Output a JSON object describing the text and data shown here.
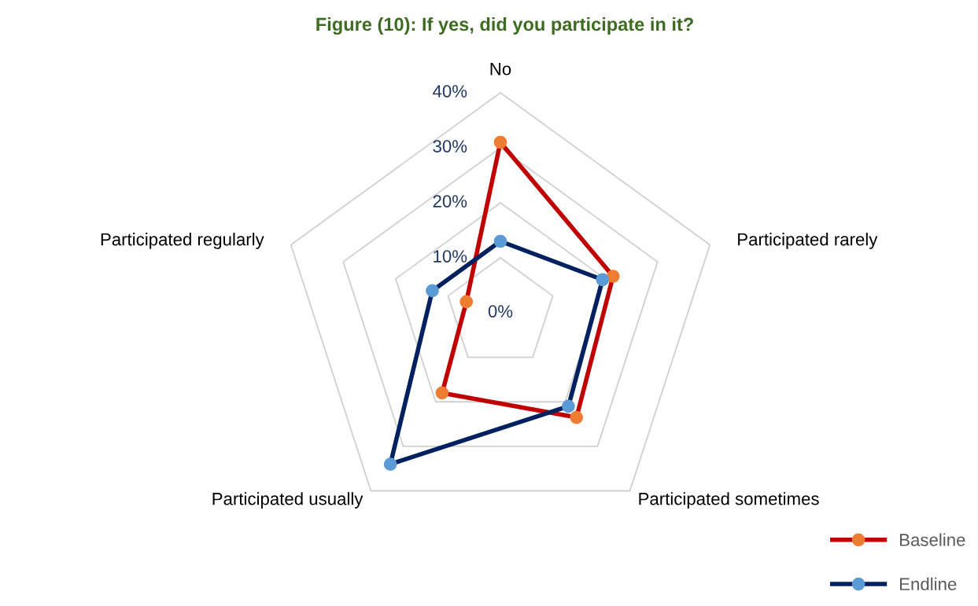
{
  "chart_data": {
    "type": "radar",
    "title": "Figure (10): If yes, did you participate in it?",
    "categories": [
      "No",
      "Participated rarely",
      "Participated sometimes",
      "Participated usually",
      "Participated regularly"
    ],
    "series": [
      {
        "name": "Baseline",
        "color": "#c00000",
        "colors": [
          "#ed7d31",
          "#ed7d31",
          "#ed7d31",
          "#ed7d31",
          "#ed7d31"
        ],
        "values": [
          31,
          21.5,
          23.5,
          18,
          6.5
        ]
      },
      {
        "name": "Endline",
        "color": "#002060",
        "colors": [
          "#5b9bd5",
          "#5b9bd5",
          "#5b9bd5",
          "#5b9bd5",
          "#5b9bd5"
        ],
        "values": [
          13,
          19.5,
          21,
          34,
          13
        ]
      }
    ],
    "ylim": [
      0,
      40
    ],
    "yticks": [
      {
        "value": 0,
        "label": "0%"
      },
      {
        "value": 10,
        "label": "10%"
      },
      {
        "value": 20,
        "label": "20%"
      },
      {
        "value": 30,
        "label": "30%"
      },
      {
        "value": 40,
        "label": "40%"
      }
    ],
    "grid": true,
    "legend": "bottom right",
    "marker": "circle",
    "line_style": "solid"
  }
}
